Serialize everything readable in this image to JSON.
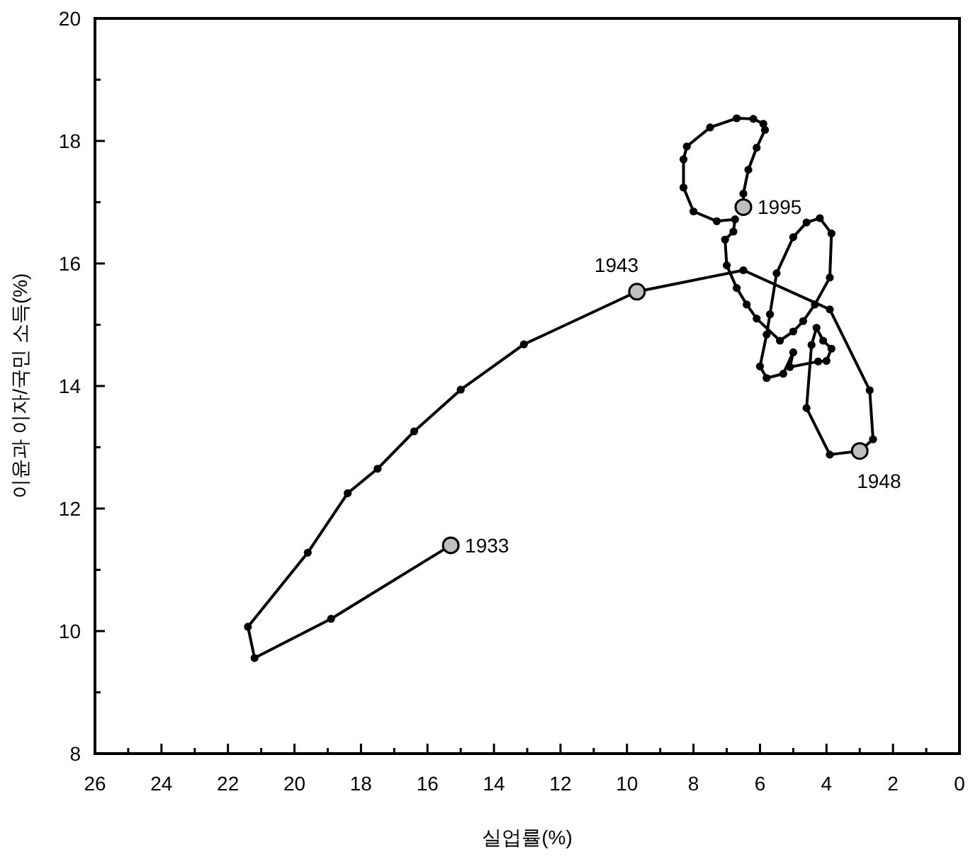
{
  "chart_data": {
    "type": "line",
    "xlabel": "실업률(%)",
    "ylabel": "이윤과 이자/국민 소득(%)",
    "x": [
      15.3,
      18.9,
      21.2,
      21.4,
      19.6,
      18.4,
      17.5,
      16.4,
      15.0,
      13.1,
      9.7,
      6.5,
      3.9,
      2.7,
      2.6,
      3.0,
      3.9,
      4.6,
      4.45,
      4.3,
      4.1,
      3.85,
      4.0,
      4.25,
      5.1,
      5.0,
      5.3,
      5.8,
      6.0,
      5.8,
      5.7,
      5.5,
      5.0,
      4.6,
      4.2,
      3.85,
      3.9,
      4.35,
      4.7,
      5.0,
      5.4,
      6.1,
      6.4,
      6.7,
      7.0,
      7.05,
      6.8,
      6.75,
      7.3,
      8.0,
      8.3,
      8.3,
      8.2,
      7.5,
      6.7,
      6.2,
      5.9,
      5.85,
      6.1,
      6.35,
      6.5,
      6.5
    ],
    "values": [
      11.4,
      10.2,
      9.56,
      10.07,
      11.28,
      12.25,
      12.65,
      13.26,
      13.94,
      14.68,
      15.54,
      15.89,
      15.25,
      13.93,
      13.13,
      12.94,
      12.88,
      13.64,
      14.67,
      14.95,
      14.74,
      14.61,
      14.41,
      14.4,
      14.31,
      14.55,
      14.2,
      14.13,
      14.32,
      14.84,
      15.17,
      15.84,
      16.43,
      16.67,
      16.74,
      16.49,
      15.77,
      15.33,
      15.06,
      14.89,
      14.74,
      15.1,
      15.33,
      15.6,
      15.97,
      16.39,
      16.52,
      16.72,
      16.69,
      16.85,
      17.24,
      17.7,
      17.91,
      18.22,
      18.37,
      18.36,
      18.28,
      18.18,
      17.89,
      17.53,
      17.14,
      16.92
    ],
    "color": "#000000",
    "marker": "circle",
    "line_style": "solid",
    "xlim": [
      26,
      0
    ],
    "xticks": [
      26,
      {
        "value": 25,
        "label": null
      },
      24,
      {
        "value": 23,
        "label": null
      },
      22,
      {
        "value": 21,
        "label": null
      },
      20,
      {
        "value": 19,
        "label": null
      },
      18,
      {
        "value": 17,
        "label": null
      },
      16,
      {
        "value": 15,
        "label": null
      },
      14,
      {
        "value": 13,
        "label": null
      },
      12,
      {
        "value": 11,
        "label": null
      },
      10,
      {
        "value": 9,
        "label": null
      },
      8,
      {
        "value": 7,
        "label": null
      },
      6,
      {
        "value": 5,
        "label": null
      },
      4,
      {
        "value": 3,
        "label": null
      },
      2,
      {
        "value": 1,
        "label": null
      },
      0
    ],
    "ylim": [
      8,
      20
    ],
    "yticks": [
      8,
      {
        "value": 9,
        "label": null
      },
      10,
      {
        "value": 11,
        "label": null
      },
      12,
      {
        "value": 13,
        "label": null
      },
      14,
      {
        "value": 15,
        "label": null
      },
      16,
      {
        "value": 17,
        "label": null
      },
      18,
      {
        "value": 19,
        "label": null
      },
      20
    ],
    "annotations": [
      {
        "text": "1933",
        "x": 15.3,
        "y": 11.4
      },
      {
        "text": "1943",
        "x": 9.7,
        "y": 15.54
      },
      {
        "text": "1948",
        "x": 3.0,
        "y": 12.94
      },
      {
        "text": "1995",
        "x": 6.5,
        "y": 16.92
      }
    ],
    "grid": false
  }
}
